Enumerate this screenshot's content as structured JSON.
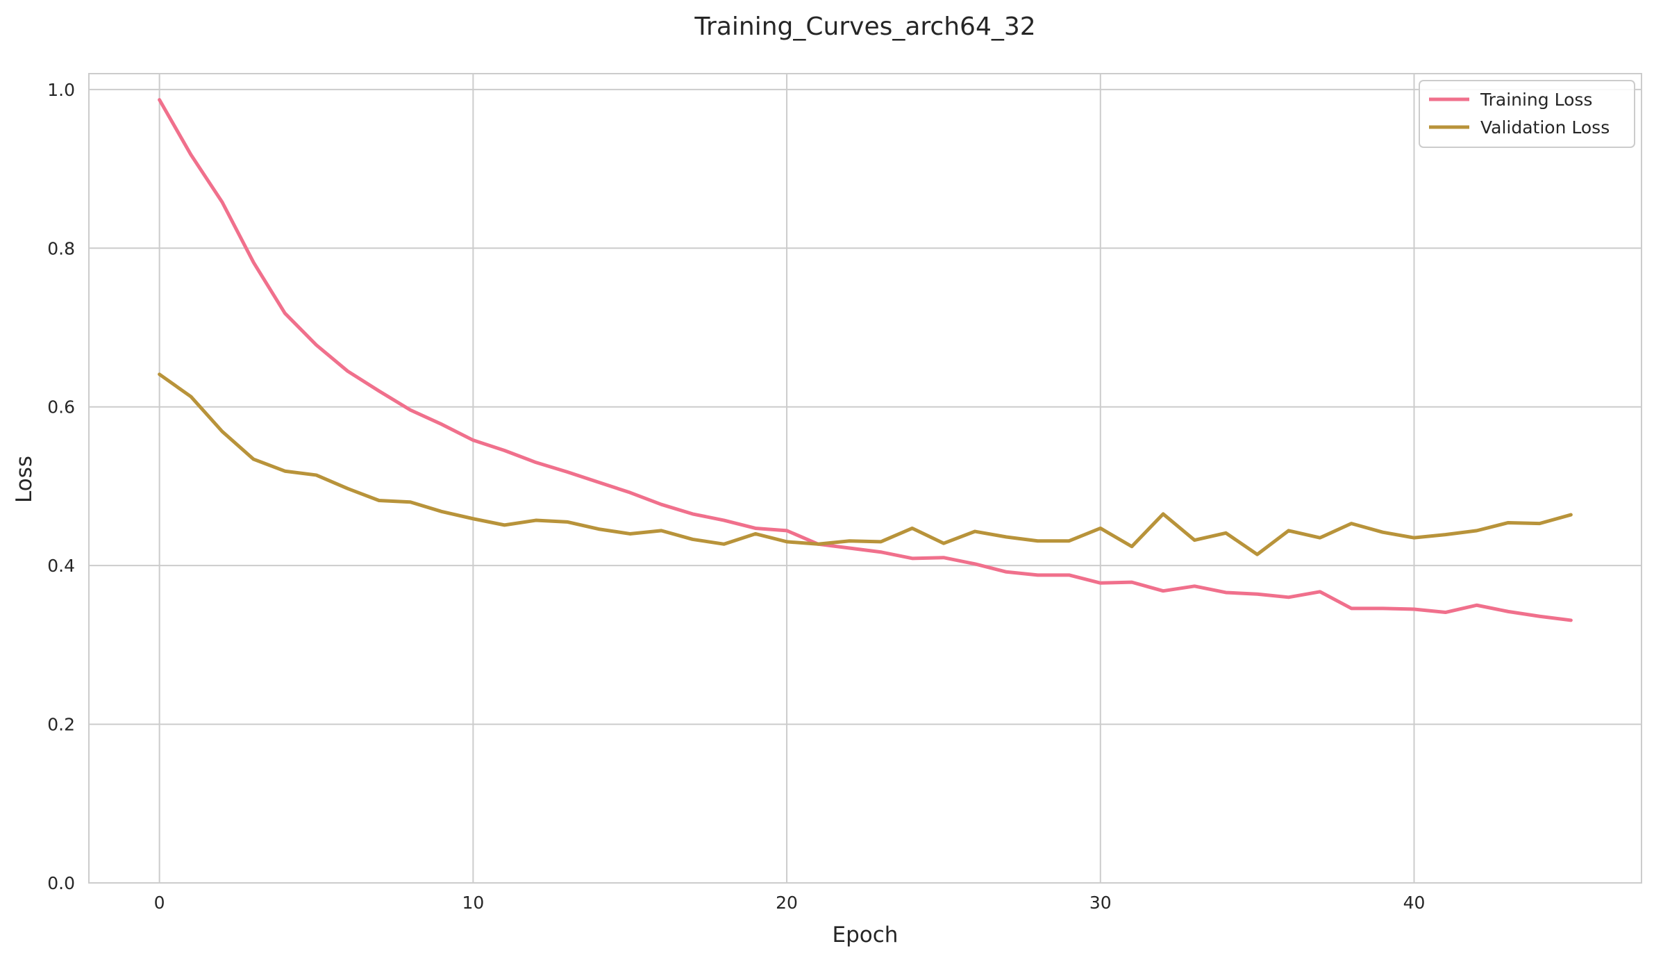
{
  "chart_data": {
    "type": "line",
    "title": "Training_Curves_arch64_32",
    "xlabel": "Epoch",
    "ylabel": "Loss",
    "xlim": [
      -2.25,
      47.25
    ],
    "ylim": [
      0.0,
      1.02
    ],
    "xticks": [
      "0",
      "10",
      "20",
      "30",
      "40"
    ],
    "yticks": [
      "0.0",
      "0.2",
      "0.4",
      "0.6",
      "0.8",
      "1.0"
    ],
    "grid": true,
    "legend_position": "top-right",
    "x": [
      0,
      1,
      2,
      3,
      4,
      5,
      6,
      7,
      8,
      9,
      10,
      11,
      12,
      13,
      14,
      15,
      16,
      17,
      18,
      19,
      20,
      21,
      22,
      23,
      24,
      25,
      26,
      27,
      28,
      29,
      30,
      31,
      32,
      33,
      34,
      35,
      36,
      37,
      38,
      39,
      40,
      41,
      42,
      43,
      44,
      45
    ],
    "series": [
      {
        "name": "Training Loss",
        "color": "#f0708c",
        "values": [
          0.987,
          0.918,
          0.858,
          0.782,
          0.718,
          0.678,
          0.645,
          0.62,
          0.596,
          0.578,
          0.558,
          0.545,
          0.53,
          0.518,
          0.505,
          0.492,
          0.477,
          0.465,
          0.457,
          0.447,
          0.444,
          0.427,
          0.422,
          0.417,
          0.409,
          0.41,
          0.402,
          0.392,
          0.388,
          0.388,
          0.378,
          0.379,
          0.368,
          0.374,
          0.366,
          0.364,
          0.36,
          0.367,
          0.346,
          0.346,
          0.345,
          0.341,
          0.35,
          0.342,
          0.336,
          0.331
        ]
      },
      {
        "name": "Validation Loss",
        "color": "#b8933a",
        "values": [
          0.641,
          0.613,
          0.569,
          0.534,
          0.519,
          0.514,
          0.497,
          0.482,
          0.48,
          0.468,
          0.459,
          0.451,
          0.457,
          0.455,
          0.446,
          0.44,
          0.444,
          0.433,
          0.427,
          0.44,
          0.43,
          0.427,
          0.431,
          0.43,
          0.447,
          0.428,
          0.443,
          0.436,
          0.431,
          0.431,
          0.447,
          0.424,
          0.465,
          0.432,
          0.441,
          0.414,
          0.444,
          0.435,
          0.453,
          0.442,
          0.435,
          0.439,
          0.444,
          0.454,
          0.453,
          0.464
        ]
      }
    ]
  }
}
